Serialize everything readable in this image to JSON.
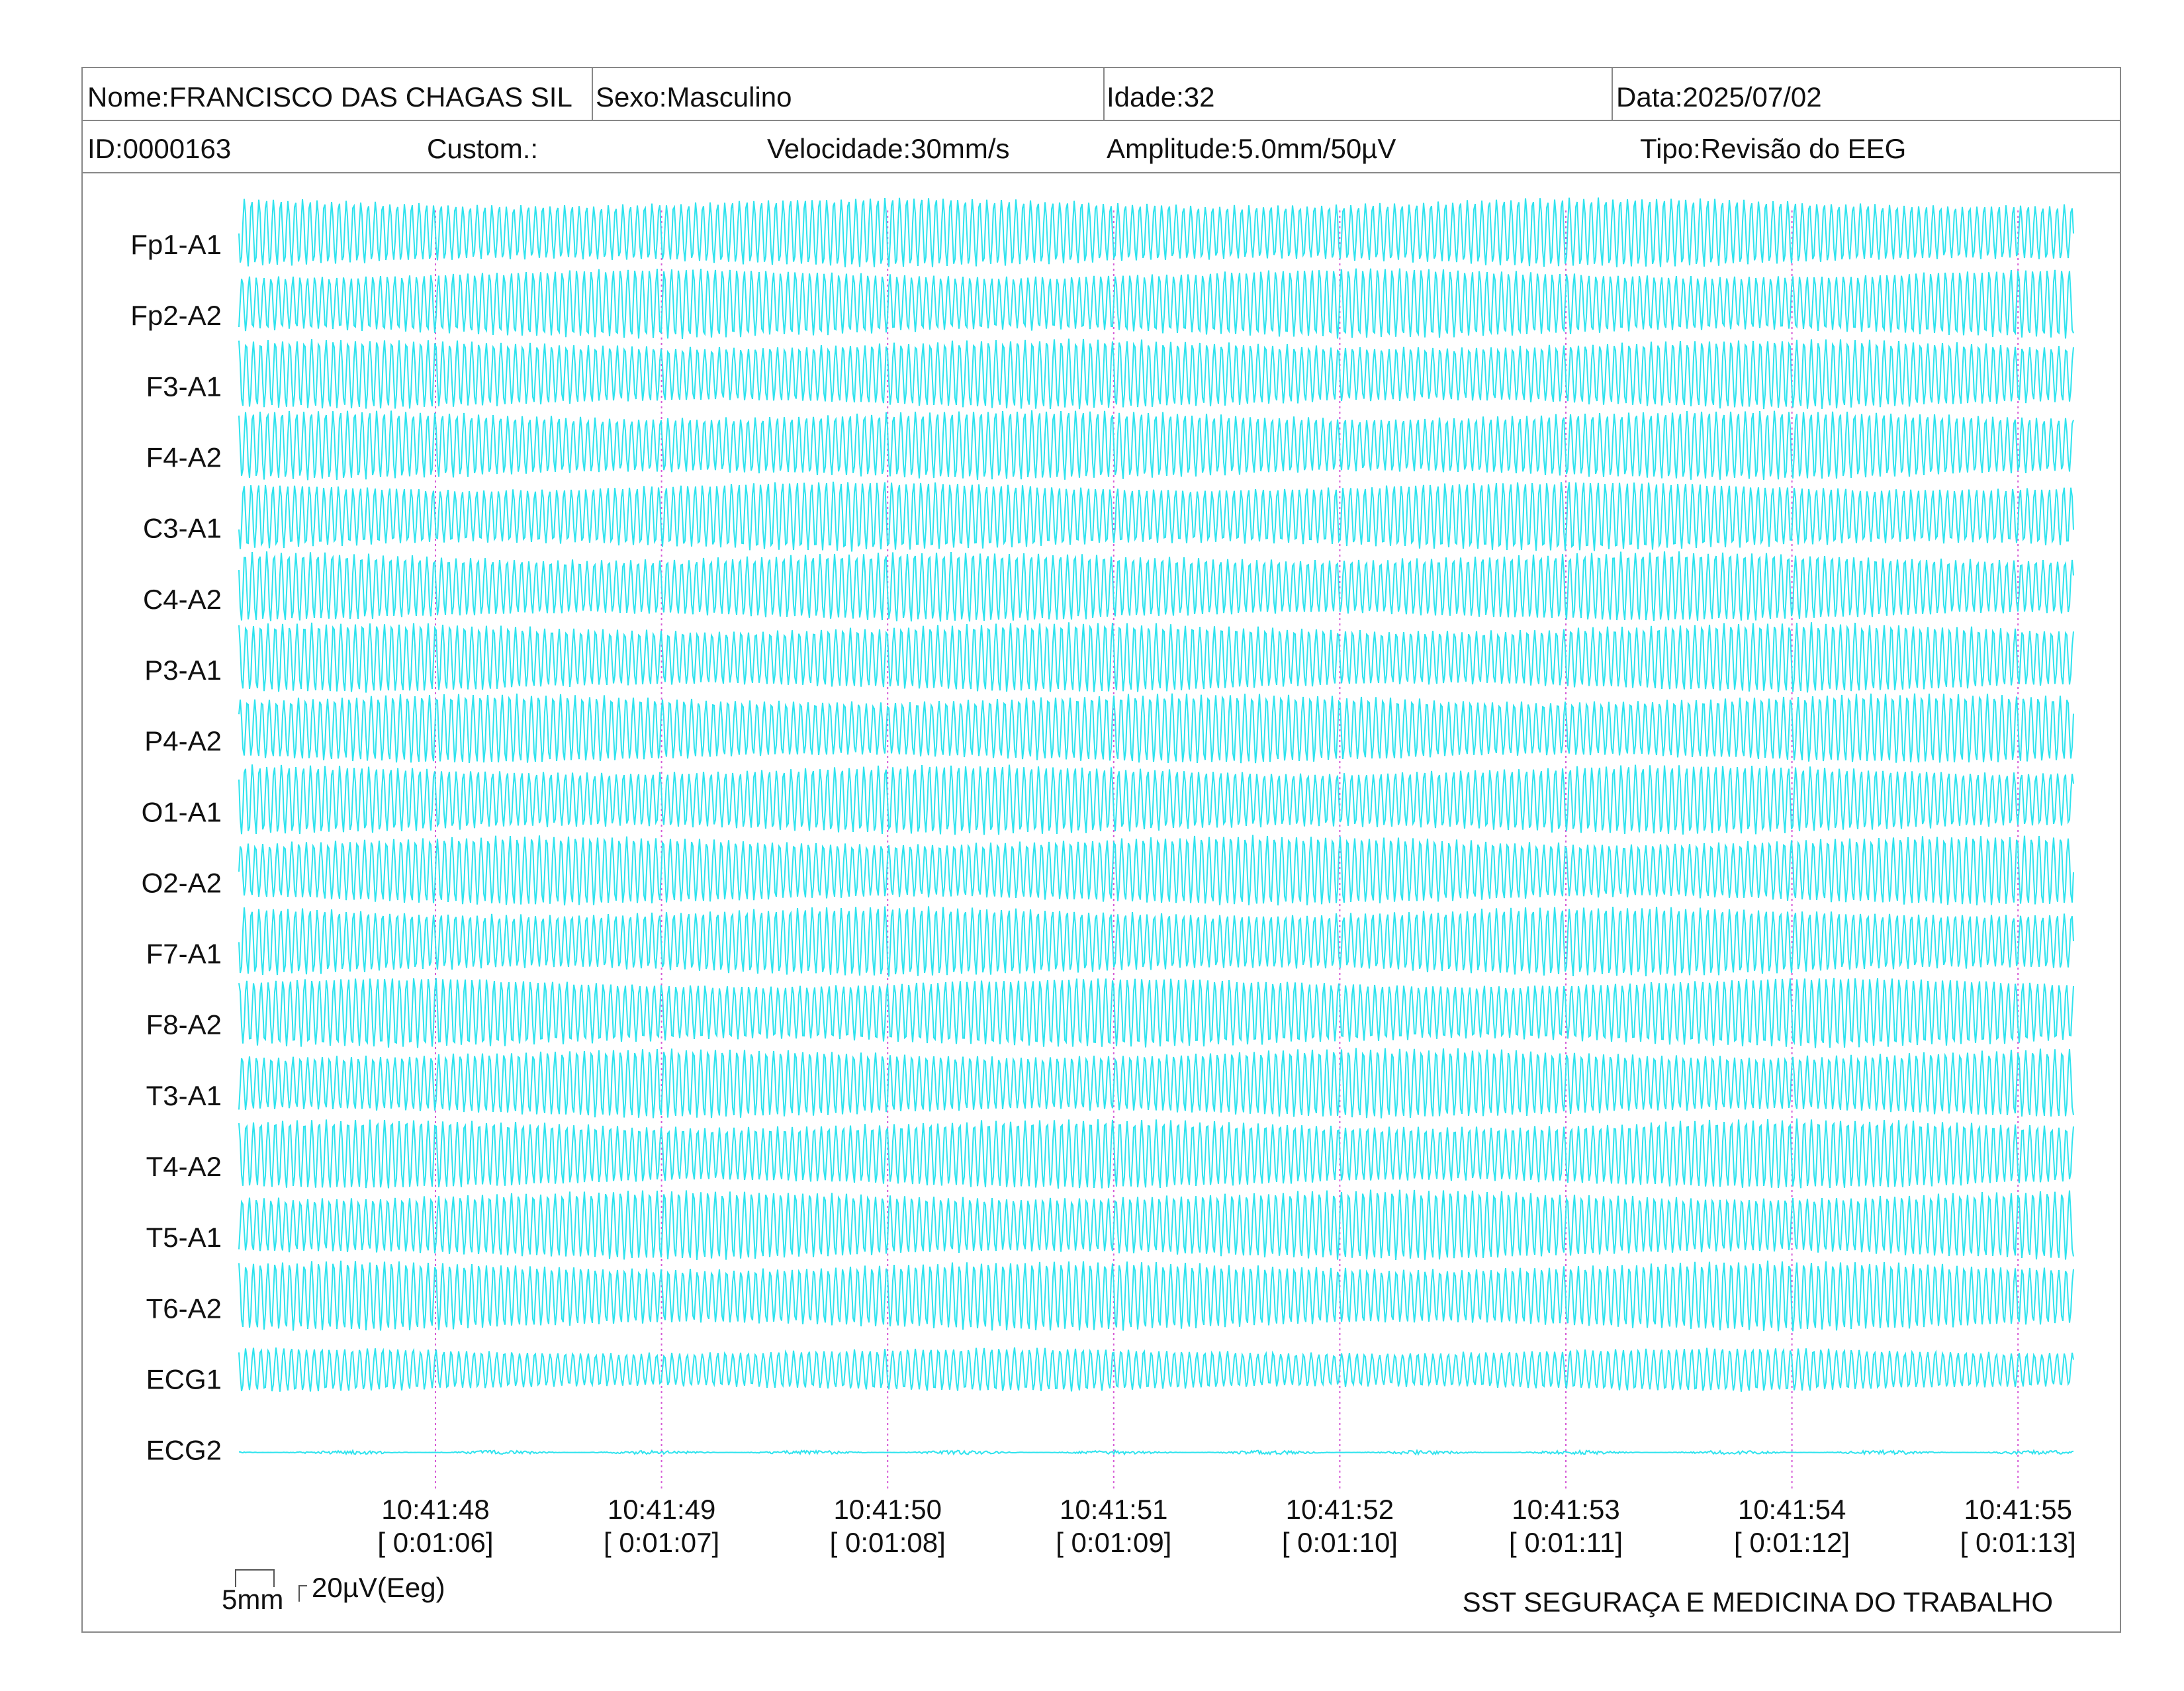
{
  "header": {
    "row1": [
      "Nome:FRANCISCO DAS CHAGAS SIL",
      "Sexo:Masculino",
      "Idade:32",
      "Data:2025/07/02"
    ],
    "row2": [
      "ID:0000163",
      "Custom.:",
      "Velocidade:30mm/s",
      "Amplitude:5.0mm/50µV",
      "Tipo:Revisão do EEG"
    ]
  },
  "channels": [
    "Fp1-A1",
    "Fp2-A2",
    "F3-A1",
    "F4-A2",
    "C3-A1",
    "C4-A2",
    "P3-A1",
    "P4-A2",
    "O1-A1",
    "O2-A2",
    "F7-A1",
    "F8-A2",
    "T3-A1",
    "T4-A2",
    "T5-A1",
    "T6-A2",
    "ECG1",
    "ECG2"
  ],
  "time_marks": [
    {
      "time": "10:41:48",
      "elapsed": "[ 0:01:06]"
    },
    {
      "time": "10:41:49",
      "elapsed": "[ 0:01:07]"
    },
    {
      "time": "10:41:50",
      "elapsed": "[ 0:01:08]"
    },
    {
      "time": "10:41:51",
      "elapsed": "[ 0:01:09]"
    },
    {
      "time": "10:41:52",
      "elapsed": "[ 0:01:10]"
    },
    {
      "time": "10:41:53",
      "elapsed": "[ 0:01:11]"
    },
    {
      "time": "10:41:54",
      "elapsed": "[ 0:01:12]"
    },
    {
      "time": "10:41:55",
      "elapsed": "[ 0:01:13]"
    }
  ],
  "scale": {
    "time": "5mm",
    "amplitude": "20µV(Eeg)"
  },
  "footer": "SST SEGURAÇA E MEDICINA DO TRABALHO"
}
